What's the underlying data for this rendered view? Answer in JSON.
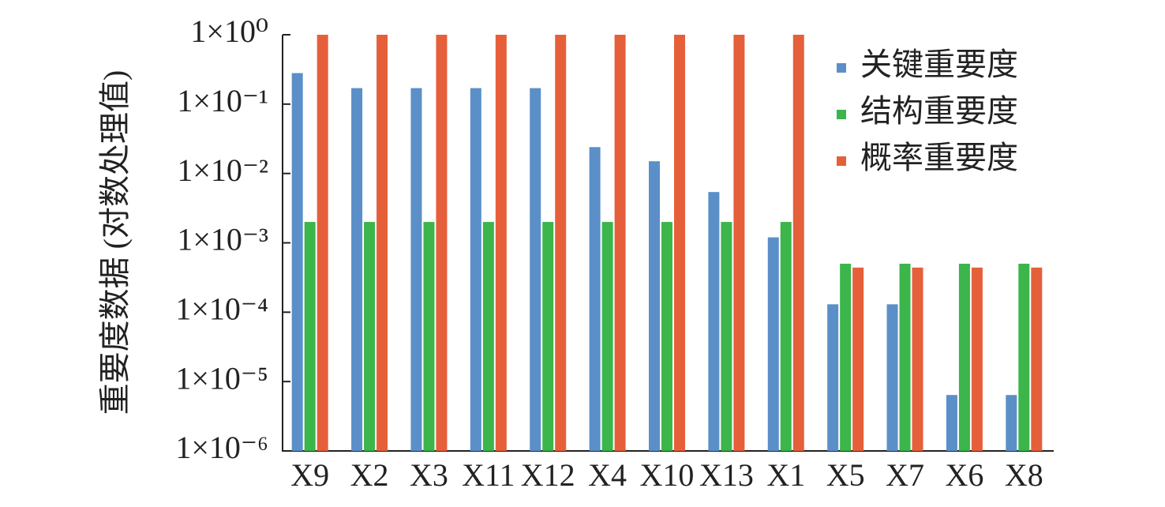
{
  "chart_data": {
    "type": "bar",
    "log_scale": true,
    "legend": "upper right",
    "ylabel": "重要度数据 (对数处理值)",
    "categories": [
      "X9",
      "X2",
      "X3",
      "X11",
      "X12",
      "X4",
      "X10",
      "X13",
      "X1",
      "X5",
      "X7",
      "X6",
      "X8"
    ],
    "series": [
      {
        "name": "关键重要度",
        "color": "#5b8fc8",
        "values": [
          0.28,
          0.17,
          0.17,
          0.17,
          0.17,
          0.024,
          0.015,
          0.0054,
          0.0012,
          0.00013,
          0.00013,
          6.4e-06,
          6.4e-06
        ]
      },
      {
        "name": "结构重要度",
        "color": "#3cb54b",
        "values": [
          0.002,
          0.002,
          0.002,
          0.002,
          0.002,
          0.002,
          0.002,
          0.002,
          0.002,
          0.0005,
          0.0005,
          0.0005,
          0.0005
        ]
      },
      {
        "name": "概率重要度",
        "color": "#e5603a",
        "values": [
          1,
          1,
          1,
          1,
          1,
          1,
          1,
          1,
          1,
          0.00044,
          0.00044,
          0.00044,
          0.00044
        ]
      }
    ],
    "ylim": [
      1e-06,
      1
    ],
    "yticks": [
      {
        "value": 1e-06,
        "label": "1×10⁻⁶"
      },
      {
        "value": 1e-05,
        "label": "1×10⁻⁵"
      },
      {
        "value": 0.0001,
        "label": "1×10⁻⁴"
      },
      {
        "value": 0.001,
        "label": "1×10⁻³"
      },
      {
        "value": 0.01,
        "label": "1×10⁻²"
      },
      {
        "value": 0.1,
        "label": "1×10⁻¹"
      },
      {
        "value": 1,
        "label": "1×10⁰"
      }
    ]
  }
}
